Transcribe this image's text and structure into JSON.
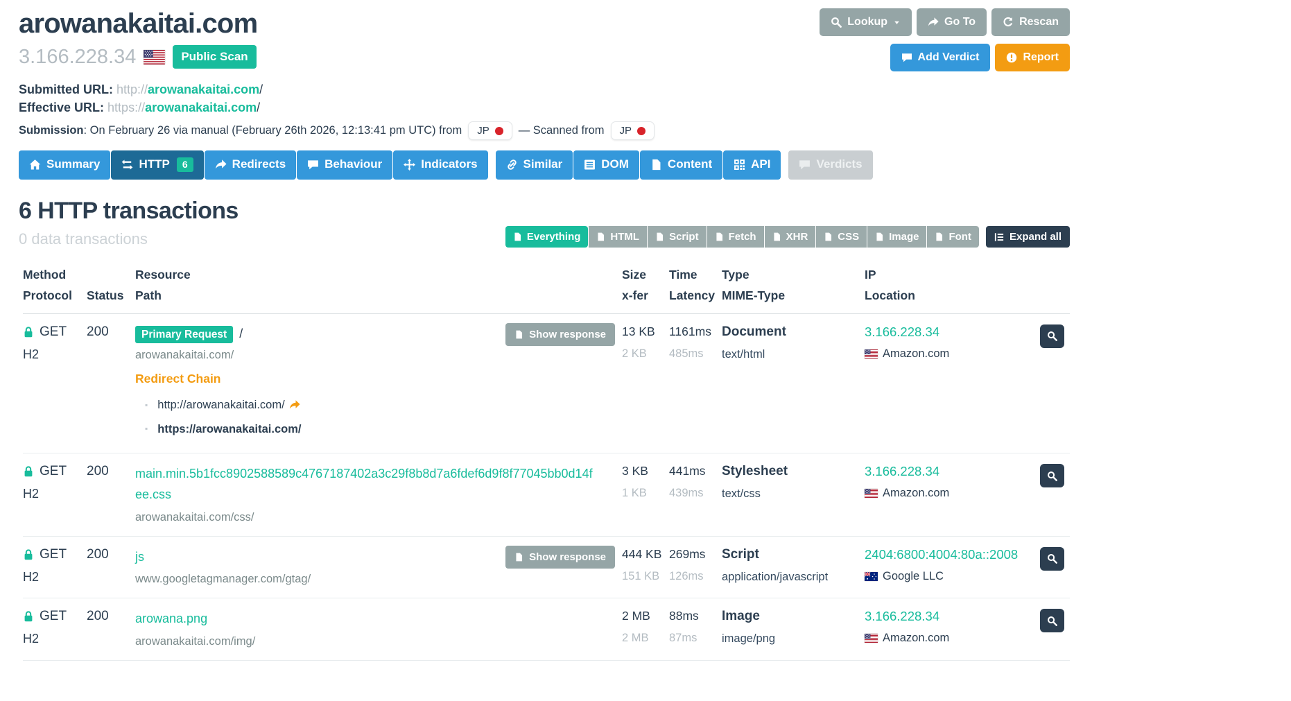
{
  "header": {
    "title": "arowanakaitai.com",
    "ip": "3.166.228.34",
    "ip_flag": "flag-us-icon",
    "scan_badge": "Public Scan",
    "toolbar": [
      {
        "id": "lookup",
        "label": "Lookup",
        "icon": "search-icon",
        "caret": true,
        "style": "gray"
      },
      {
        "id": "goto",
        "label": "Go To",
        "icon": "share-icon",
        "style": "gray"
      },
      {
        "id": "rescan",
        "label": "Rescan",
        "icon": "rescan-icon",
        "style": "gray"
      }
    ],
    "toolbar2": [
      {
        "id": "add-verdict",
        "label": "Add Verdict",
        "icon": "comment-icon",
        "style": "blue"
      },
      {
        "id": "report",
        "label": "Report",
        "icon": "report-icon",
        "style": "orange"
      }
    ]
  },
  "meta": {
    "submitted_label": "Submitted URL:",
    "submitted_scheme": "http://",
    "submitted_domain": "arowanakaitai.com",
    "submitted_tail": "/",
    "effective_label": "Effective URL:",
    "effective_scheme": "https://",
    "effective_domain": "arowanakaitai.com",
    "effective_tail": "/",
    "submission_label": "Submission",
    "submission_text": ": On February 26 via manual (February 26th 2026, 12:13:41 pm UTC) from",
    "submission_country": "JP",
    "scanned_text": "— Scanned from",
    "scanned_country": "JP"
  },
  "tabs": [
    {
      "label": "Summary",
      "icon": "home-icon"
    },
    {
      "label": "HTTP",
      "icon": "exchange-icon",
      "badge": "6",
      "active": true
    },
    {
      "label": "Redirects",
      "icon": "share-icon"
    },
    {
      "label": "Behaviour",
      "icon": "comment-icon"
    },
    {
      "label": "Indicators",
      "icon": "move-icon"
    },
    {
      "label": "Similar",
      "icon": "link-icon",
      "gap": true
    },
    {
      "label": "DOM",
      "icon": "dom-icon"
    },
    {
      "label": "Content",
      "icon": "file-icon"
    },
    {
      "label": "API",
      "icon": "qr-icon"
    },
    {
      "label": "Verdicts",
      "icon": "comment-icon",
      "disabled": true,
      "gap": true
    }
  ],
  "section": {
    "heading": "6 HTTP transactions",
    "subheading": "0 data transactions",
    "filters": [
      {
        "label": "Everything",
        "icon": "file-icon",
        "active": true
      },
      {
        "label": "HTML",
        "icon": "file-icon"
      },
      {
        "label": "Script",
        "icon": "file-icon"
      },
      {
        "label": "Fetch",
        "icon": "file-icon"
      },
      {
        "label": "XHR",
        "icon": "file-icon"
      },
      {
        "label": "CSS",
        "icon": "file-icon"
      },
      {
        "label": "Image",
        "icon": "file-icon"
      },
      {
        "label": "Font",
        "icon": "file-icon"
      }
    ],
    "expand_all": "Expand all"
  },
  "table": {
    "headers": {
      "method_l1": "Method",
      "method_l2": "Protocol",
      "status_l2": "Status",
      "resource_l1": "Resource",
      "resource_l2": "Path",
      "size_l1": "Size",
      "size_l2": "x-fer",
      "time_l1": "Time",
      "time_l2": "Latency",
      "type_l1": "Type",
      "type_l2": "MIME-Type",
      "ip_l1": "IP",
      "ip_l2": "Location"
    },
    "show_response_label": "Show response",
    "rows": [
      {
        "method": "GET",
        "protocol": "H2",
        "status": "200",
        "primary_badge": "Primary Request",
        "resource": "/",
        "path": "arowanakaitai.com/",
        "redirect_chain": {
          "label": "Redirect Chain",
          "items": [
            {
              "url": "http://arowanakaitai.com/",
              "has_arrow": true
            },
            {
              "url": "https://arowanakaitai.com/",
              "bold": true
            }
          ]
        },
        "show_response": true,
        "size": "13 KB",
        "xfer": "2 KB",
        "time": "1161ms",
        "latency": "485ms",
        "type": "Document",
        "mime": "text/html",
        "ip": "3.166.228.34",
        "flag": "flag-us-icon",
        "location": "Amazon.com"
      },
      {
        "method": "GET",
        "protocol": "H2",
        "status": "200",
        "resource": "main.min.5b1fcc8902588589c4767187402a3c29f8b8d7a6fdef6d9f8f77045bb0d14fee.css",
        "path": "arowanakaitai.com/css/",
        "show_response": false,
        "size": "3 KB",
        "xfer": "1 KB",
        "time": "441ms",
        "latency": "439ms",
        "type": "Stylesheet",
        "mime": "text/css",
        "ip": "3.166.228.34",
        "flag": "flag-us-icon",
        "location": "Amazon.com"
      },
      {
        "method": "GET",
        "protocol": "H2",
        "status": "200",
        "resource": "js",
        "path": "www.googletagmanager.com/gtag/",
        "show_response": true,
        "size": "444 KB",
        "xfer": "151 KB",
        "time": "269ms",
        "latency": "126ms",
        "type": "Script",
        "mime": "application/javascript",
        "ip": "2404:6800:4004:80a::2008",
        "flag": "flag-au-icon",
        "location": "Google LLC"
      },
      {
        "method": "GET",
        "protocol": "H2",
        "status": "200",
        "resource": "arowana.png",
        "path": "arowanakaitai.com/img/",
        "show_response": false,
        "size": "2 MB",
        "xfer": "2 MB",
        "time": "88ms",
        "latency": "87ms",
        "type": "Image",
        "mime": "image/png",
        "ip": "3.166.228.34",
        "flag": "flag-us-icon",
        "location": "Amazon.com"
      }
    ]
  },
  "colors": {
    "teal": "#18bc9c",
    "blue": "#3498db",
    "navy": "#2c3e50",
    "orange": "#f39c12",
    "gray": "#95a5a6",
    "red_dot": "#d8232a"
  }
}
